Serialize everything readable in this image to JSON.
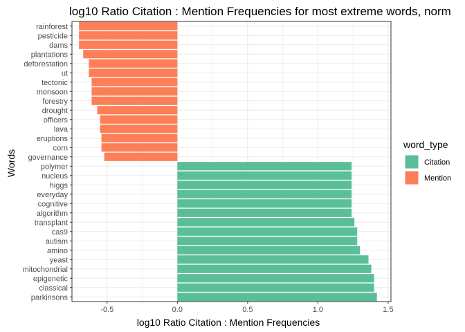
{
  "chart_data": {
    "type": "bar",
    "orientation": "horizontal",
    "title": "log10 Ratio Citation : Mention Frequencies for most extreme words, norm",
    "xlabel": "log10 Ratio Citation : Mention Frequencies",
    "ylabel": "Words",
    "xlim": [
      -0.75,
      1.52
    ],
    "xticks": [
      -0.5,
      0.0,
      0.5,
      1.0,
      1.5
    ],
    "xtick_labels": [
      "-0.5",
      "0.0",
      "0.5",
      "1.0",
      "1.5"
    ],
    "grid": true,
    "legend": {
      "title": "word_type",
      "position": "right",
      "entries": [
        {
          "name": "Citation",
          "color": "#5ABF98"
        },
        {
          "name": "Mention",
          "color": "#FC7F58"
        }
      ]
    },
    "bars": [
      {
        "word": "rainforest",
        "value": -0.7,
        "type": "Mention"
      },
      {
        "word": "pesticide",
        "value": -0.7,
        "type": "Mention"
      },
      {
        "word": "dams",
        "value": -0.7,
        "type": "Mention"
      },
      {
        "word": "plantations",
        "value": -0.67,
        "type": "Mention"
      },
      {
        "word": "deforestation",
        "value": -0.63,
        "type": "Mention"
      },
      {
        "word": "ut",
        "value": -0.63,
        "type": "Mention"
      },
      {
        "word": "tectonic",
        "value": -0.61,
        "type": "Mention"
      },
      {
        "word": "monsoon",
        "value": -0.61,
        "type": "Mention"
      },
      {
        "word": "forestry",
        "value": -0.61,
        "type": "Mention"
      },
      {
        "word": "drought",
        "value": -0.57,
        "type": "Mention"
      },
      {
        "word": "officers",
        "value": -0.55,
        "type": "Mention"
      },
      {
        "word": "lava",
        "value": -0.55,
        "type": "Mention"
      },
      {
        "word": "eruptions",
        "value": -0.54,
        "type": "Mention"
      },
      {
        "word": "corn",
        "value": -0.54,
        "type": "Mention"
      },
      {
        "word": "governance",
        "value": -0.52,
        "type": "Mention"
      },
      {
        "word": "polymer",
        "value": 1.24,
        "type": "Citation"
      },
      {
        "word": "nucleus",
        "value": 1.24,
        "type": "Citation"
      },
      {
        "word": "higgs",
        "value": 1.24,
        "type": "Citation"
      },
      {
        "word": "everyday",
        "value": 1.24,
        "type": "Citation"
      },
      {
        "word": "cognitive",
        "value": 1.24,
        "type": "Citation"
      },
      {
        "word": "algorithm",
        "value": 1.24,
        "type": "Citation"
      },
      {
        "word": "transplant",
        "value": 1.26,
        "type": "Citation"
      },
      {
        "word": "cas9",
        "value": 1.28,
        "type": "Citation"
      },
      {
        "word": "autism",
        "value": 1.28,
        "type": "Citation"
      },
      {
        "word": "amino",
        "value": 1.3,
        "type": "Citation"
      },
      {
        "word": "yeast",
        "value": 1.36,
        "type": "Citation"
      },
      {
        "word": "mitochondrial",
        "value": 1.38,
        "type": "Citation"
      },
      {
        "word": "epigenetic",
        "value": 1.4,
        "type": "Citation"
      },
      {
        "word": "classical",
        "value": 1.4,
        "type": "Citation"
      },
      {
        "word": "parkinsons",
        "value": 1.42,
        "type": "Citation"
      }
    ]
  }
}
